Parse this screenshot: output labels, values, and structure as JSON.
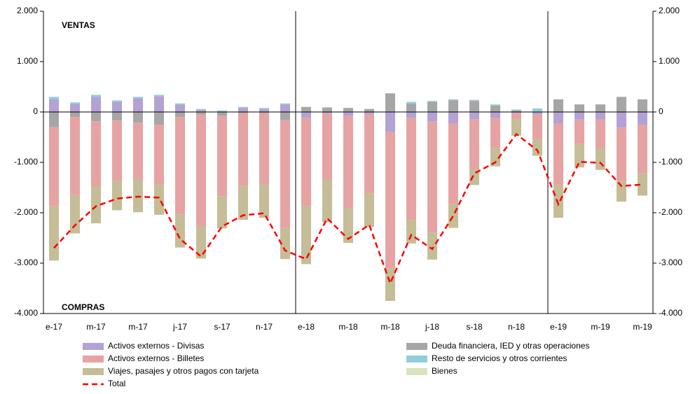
{
  "chart_data": {
    "type": "bar",
    "annotations": [
      "VENTAS",
      "COMPRAS"
    ],
    "categories": [
      "e-17",
      null,
      "m-17",
      null,
      "m-17",
      null,
      "j-17",
      null,
      "s-17",
      null,
      "n-17",
      null,
      "e-18",
      null,
      "m-18",
      null,
      "m-18",
      null,
      "j-18",
      null,
      "s-18",
      null,
      "n-18",
      null,
      "e-19",
      null,
      "m-19",
      null,
      "m-19"
    ],
    "series": [
      {
        "name": "Activos externos - Divisas",
        "color": "#b3a2d3",
        "values": [
          250,
          160,
          300,
          200,
          270,
          310,
          150,
          40,
          10,
          80,
          60,
          150,
          -120,
          -30,
          -80,
          -40,
          -400,
          -120,
          -190,
          -230,
          -140,
          -120,
          -20,
          -50,
          -230,
          -150,
          -150,
          -310,
          -250
        ]
      },
      {
        "name": "Deuda financiera, IED y otras operaciones",
        "color": "#a6a6a6",
        "values": [
          -300,
          -100,
          -180,
          -170,
          -210,
          -250,
          -100,
          -50,
          -80,
          -20,
          -20,
          -160,
          100,
          90,
          80,
          60,
          370,
          160,
          200,
          230,
          220,
          130,
          30,
          10,
          250,
          150,
          150,
          300,
          250
        ]
      },
      {
        "name": "Activos externos - Billetes",
        "color": "#e6a3a3",
        "values": [
          -1570,
          -1550,
          -1300,
          -1200,
          -1130,
          -1190,
          -1930,
          -2220,
          -1590,
          -1440,
          -1420,
          -2140,
          -1750,
          -1310,
          -1830,
          -1580,
          -2690,
          -2020,
          -2200,
          -1600,
          -1000,
          -600,
          -120,
          -500,
          -1220,
          -480,
          -580,
          -1060,
          -970
        ]
      },
      {
        "name": "Resto de servicios y otros corrientes",
        "color": "#92cddc",
        "values": [
          50,
          30,
          40,
          30,
          30,
          30,
          20,
          20,
          20,
          20,
          20,
          20,
          0,
          0,
          0,
          0,
          0,
          40,
          20,
          20,
          20,
          20,
          20,
          60,
          0,
          0,
          0,
          0,
          0
        ]
      },
      {
        "name": "Viajes, pasajes y otros pagos con tarjeta",
        "color": "#c4bd97",
        "values": [
          -1080,
          -760,
          -730,
          -580,
          -650,
          -600,
          -660,
          -640,
          -640,
          -680,
          -660,
          -620,
          -1150,
          -850,
          -690,
          -660,
          -660,
          -470,
          -540,
          -470,
          -310,
          -360,
          -330,
          -320,
          -650,
          -470,
          -420,
          -410,
          -440
        ]
      },
      {
        "name": "Bienes",
        "color": "#d7e4bd",
        "values": [
          0,
          0,
          0,
          0,
          0,
          0,
          0,
          0,
          0,
          0,
          0,
          0,
          0,
          0,
          0,
          0,
          0,
          0,
          0,
          0,
          0,
          0,
          0,
          0,
          0,
          0,
          0,
          0,
          0
        ]
      },
      {
        "name": "Total",
        "color": "#ff0000",
        "type": "line",
        "values": [
          -2700,
          -2250,
          -1870,
          -1720,
          -1680,
          -1700,
          -2520,
          -2870,
          -2270,
          -2050,
          -2010,
          -2750,
          -2920,
          -2110,
          -2520,
          -2240,
          -3400,
          -2440,
          -2720,
          -2060,
          -1220,
          -1000,
          -440,
          -760,
          -1830,
          -990,
          -1010,
          -1470,
          -1440
        ]
      }
    ],
    "ylim": [
      -4000,
      2000
    ],
    "yticks": [
      {
        "value": -4000,
        "label": "-4.000"
      },
      {
        "value": -3000,
        "label": "-3.000"
      },
      {
        "value": -2000,
        "label": "-2.000"
      },
      {
        "value": -1000,
        "label": "-1.000"
      },
      0,
      {
        "value": 1000,
        "label": "1.000"
      },
      {
        "value": 2000,
        "label": "2.000"
      }
    ],
    "y2lim": [
      -4000,
      2000
    ],
    "y2ticks": [
      {
        "value": -4000,
        "label": "-4.000"
      },
      {
        "value": -3000,
        "label": "-3.000"
      },
      {
        "value": -2000,
        "label": "-2.000"
      },
      {
        "value": -1000,
        "label": "-1.000"
      },
      0,
      {
        "value": 1000,
        "label": "1.000"
      },
      {
        "value": 2000,
        "label": "2.000"
      }
    ]
  }
}
